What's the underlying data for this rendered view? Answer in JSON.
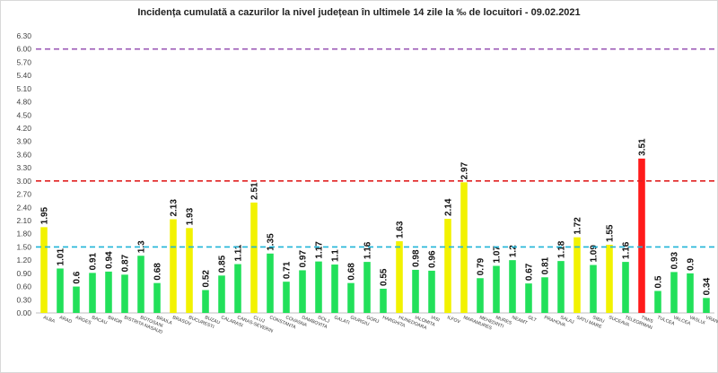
{
  "chart_data": {
    "type": "bar",
    "title": "Incidența cumulată a cazurilor la nivel județean în ultimele 14 zile   la ‰ de locuitori  - 09.02.2021",
    "xlabel": "",
    "ylabel": "",
    "ylim": [
      0,
      6.3
    ],
    "yticks": [
      "0.00",
      "0.30",
      "0.60",
      "0.90",
      "1.20",
      "1.50",
      "1.80",
      "2.10",
      "2.40",
      "2.70",
      "3.00",
      "3.30",
      "3.60",
      "3.90",
      "4.20",
      "4.50",
      "4.80",
      "5.10",
      "5.40",
      "5.70",
      "6.00",
      "6.30"
    ],
    "grid": false,
    "categories": [
      "ALBA",
      "ARAD",
      "ARGES",
      "BACAU",
      "BIHOR",
      "BISTRITA NASAUD",
      "BOTOSANI",
      "BRAILA",
      "BRASOV",
      "BUCURESTI",
      "BUZAU",
      "CALARASI",
      "CARAS-SEVERIN",
      "CLUJ",
      "CONSTANTA",
      "COVASNA",
      "DAMBOVITA",
      "DOLJ",
      "GALATI",
      "GIURGIU",
      "GORJ",
      "HARGHITA",
      "HUNEDOARA",
      "IALOMITA",
      "IASI",
      "ILFOV",
      "MARAMURES",
      "MEHEDINTI",
      "MURES",
      "NEAMT",
      "OLT",
      "PRAHOVA",
      "SALAJ",
      "SATU MARE",
      "SIBIU",
      "SUCEAVA",
      "TELEORMAN",
      "TIMIS",
      "TULCEA",
      "VALCEA",
      "VASLUI",
      "VRANCEA"
    ],
    "values": [
      1.95,
      1.01,
      0.6,
      0.91,
      0.94,
      0.87,
      1.3,
      0.68,
      2.13,
      1.93,
      0.52,
      0.85,
      1.11,
      2.51,
      1.35,
      0.71,
      0.97,
      1.17,
      1.1,
      0.68,
      1.16,
      0.55,
      1.63,
      0.98,
      0.96,
      2.14,
      2.97,
      0.79,
      1.07,
      1.2,
      0.67,
      0.81,
      1.18,
      1.72,
      1.09,
      1.55,
      1.16,
      3.51,
      0.5,
      0.93,
      0.9,
      0.34
    ],
    "value_labels": [
      "1.95",
      "1.01",
      "0.6",
      "0.91",
      "0.94",
      "0.87",
      "1.3",
      "0.68",
      "2.13",
      "1.93",
      "0.52",
      "0.85",
      "1.11",
      "2.51",
      "1.35",
      "0.71",
      "0.97",
      "1.17",
      "1.1",
      "0.68",
      "1.16",
      "0.55",
      "1.63",
      "0.98",
      "0.96",
      "2.14",
      "2.97",
      "0.79",
      "1.07",
      "1.2",
      "0.67",
      "0.81",
      "1.18",
      "1.72",
      "1.09",
      "1.55",
      "1.16",
      "3.51",
      "0.5",
      "0.93",
      "0.9",
      "0.34"
    ],
    "thresholds": [
      {
        "value": 1.5,
        "color": "#1fb4d8"
      },
      {
        "value": 3.0,
        "color": "#e02020"
      },
      {
        "value": 6.0,
        "color": "#9b59b6"
      }
    ],
    "colors": {
      "low": "#22e05a",
      "medium": "#f2f200",
      "high": "#ff1a1a"
    }
  }
}
